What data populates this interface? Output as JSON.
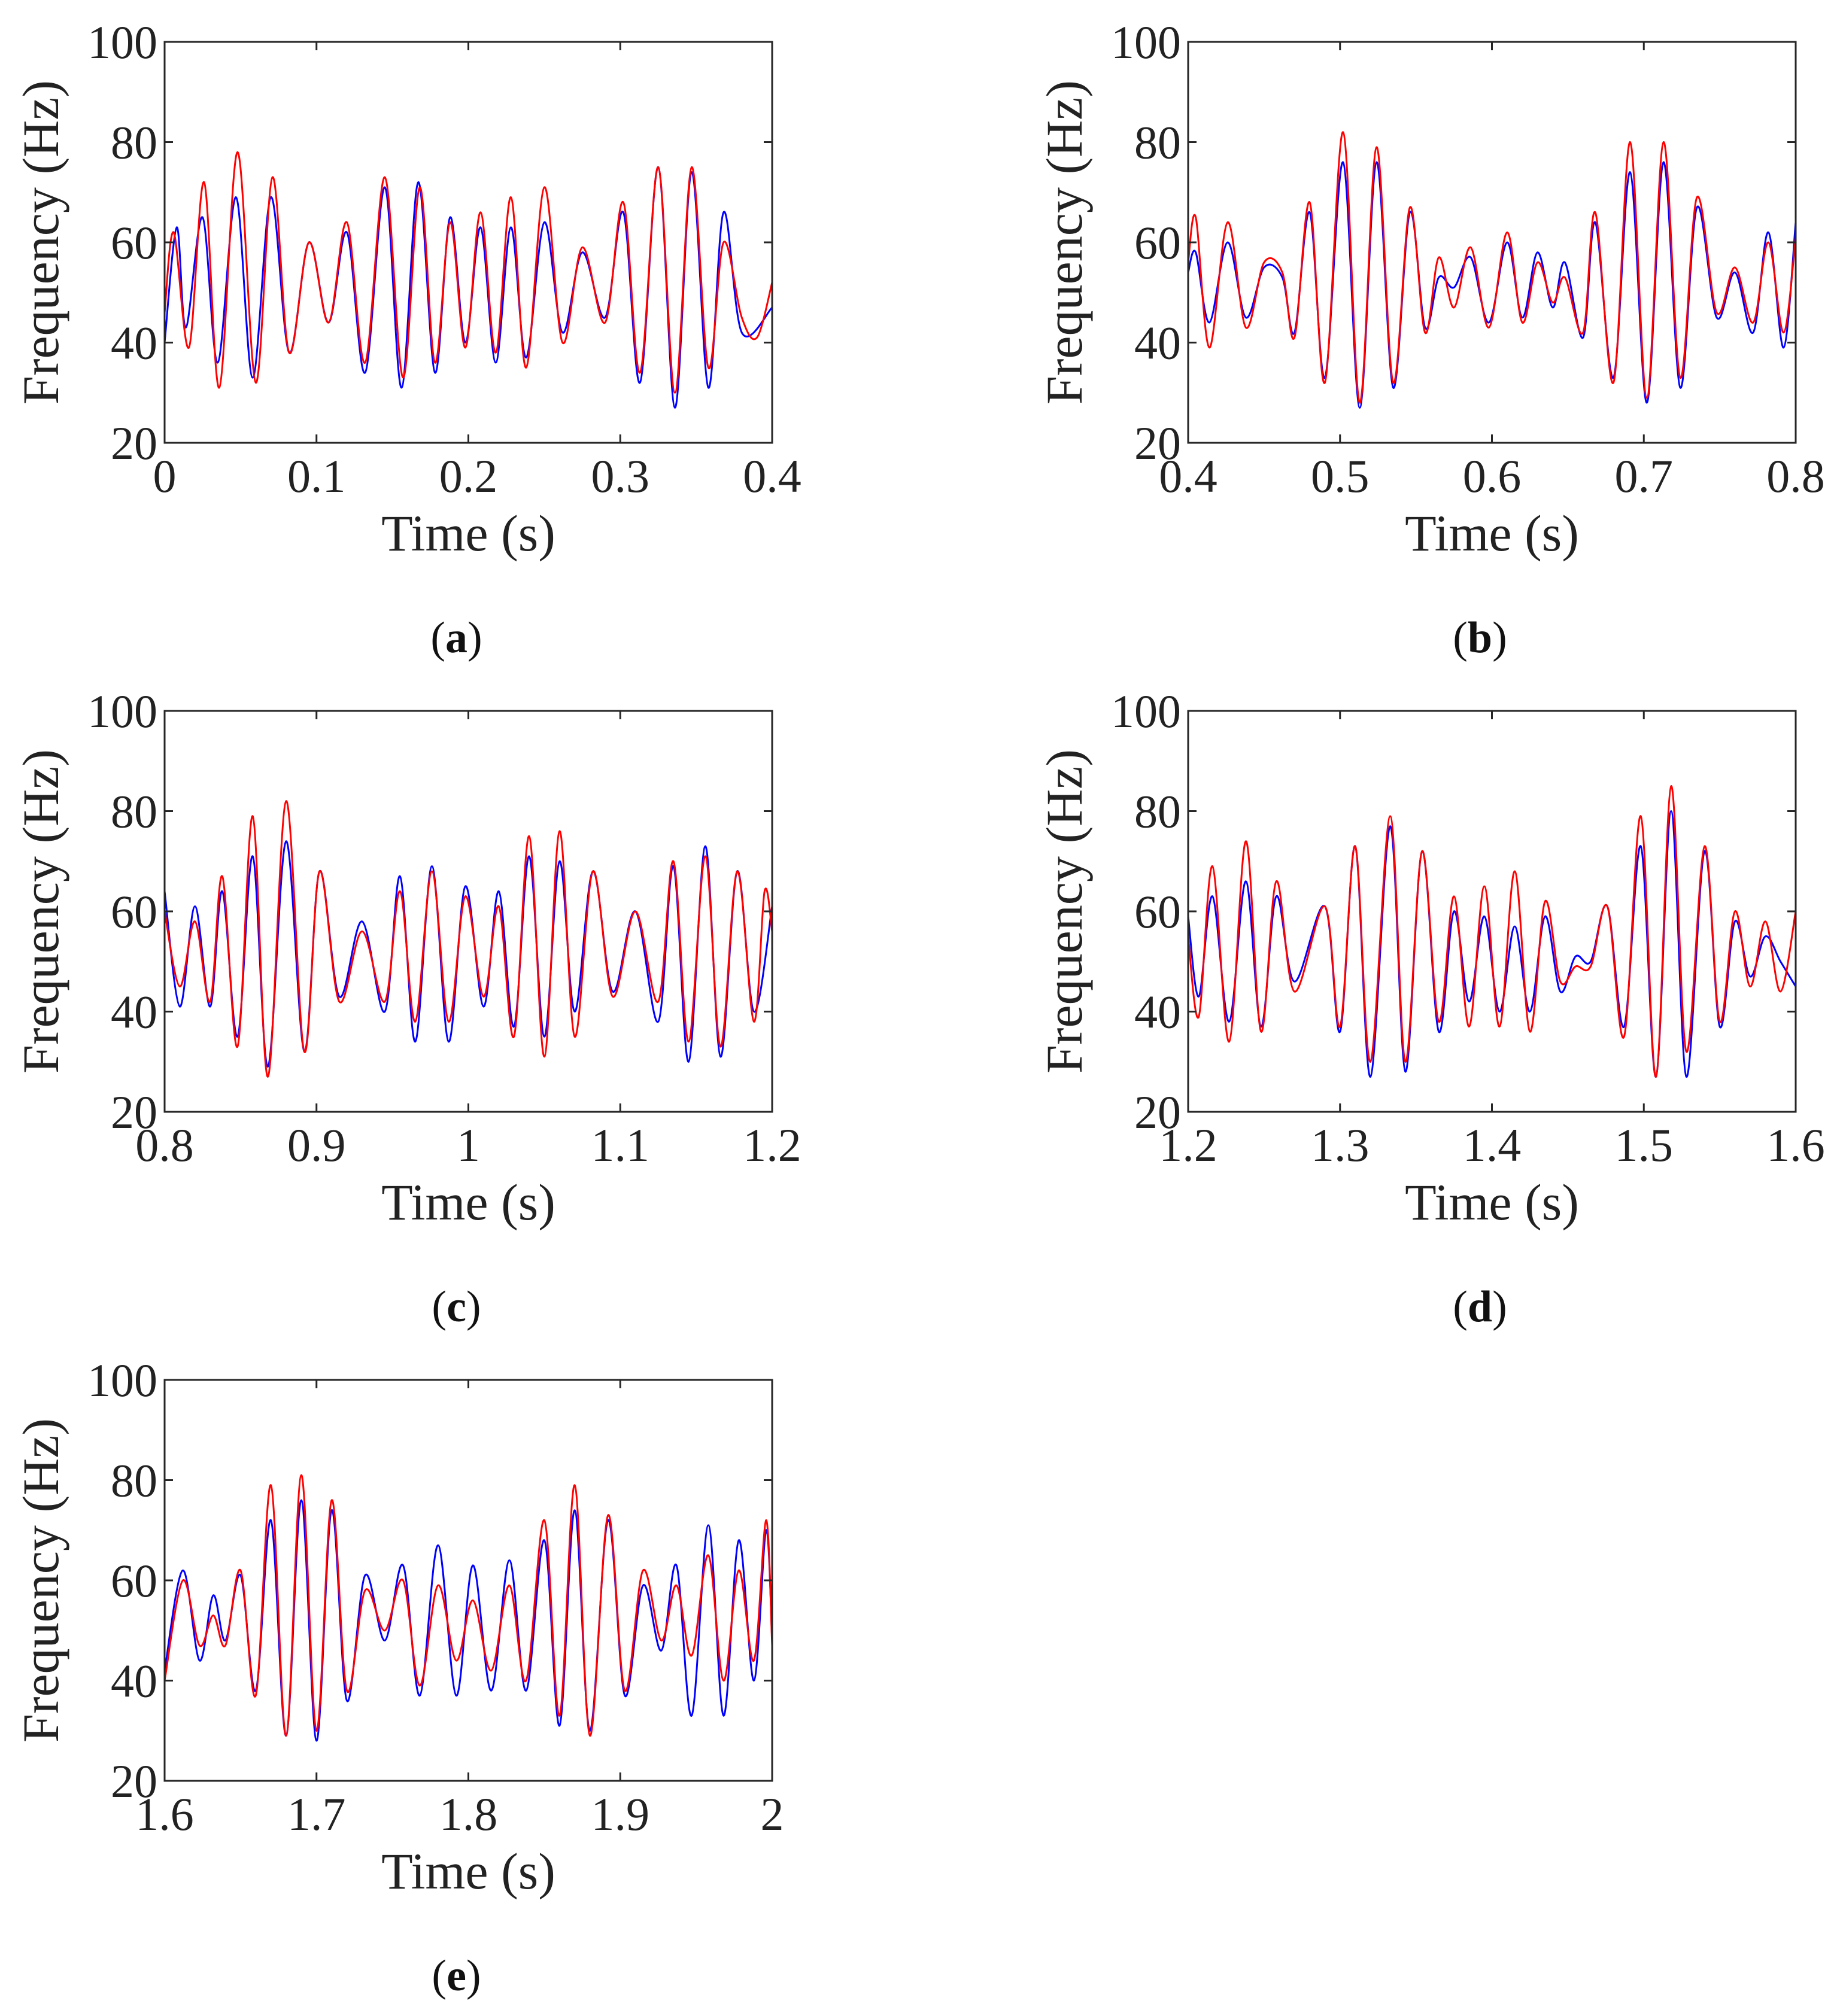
{
  "chart_data": [
    {
      "panel": "(a)",
      "caption_letter": "a",
      "type": "line",
      "xlabel": "Time (s)",
      "ylabel": "Frequency (Hz)",
      "xlim": [
        0,
        0.4
      ],
      "ylim": [
        20,
        100
      ],
      "xticks": [
        "0",
        "0.1",
        "0.2",
        "0.3",
        "0.4"
      ],
      "xtick_values": [
        0,
        0.1,
        0.2,
        0.3,
        0.4
      ],
      "yticks": [
        "20",
        "40",
        "60",
        "80",
        "100"
      ],
      "ytick_values": [
        20,
        40,
        60,
        80,
        100
      ],
      "series": [
        {
          "name": "blue",
          "color": "#0000ff",
          "x": [
            0,
            0.008,
            0.014,
            0.025,
            0.035,
            0.047,
            0.058,
            0.07,
            0.082,
            0.095,
            0.108,
            0.12,
            0.132,
            0.145,
            0.156,
            0.167,
            0.178,
            0.188,
            0.198,
            0.208,
            0.218,
            0.228,
            0.238,
            0.25,
            0.262,
            0.275,
            0.29,
            0.302,
            0.313,
            0.325,
            0.336,
            0.347,
            0.358,
            0.368,
            0.38,
            0.4
          ],
          "y": [
            40,
            63,
            43,
            65,
            36,
            69,
            33,
            69,
            38,
            60,
            44,
            62,
            34,
            71,
            31,
            72,
            34,
            65,
            40,
            63,
            36,
            63,
            37,
            64,
            42,
            58,
            45,
            66,
            32,
            75,
            27,
            74,
            31,
            66,
            42,
            47
          ]
        },
        {
          "name": "red",
          "color": "#ff0000",
          "x": [
            0,
            0.006,
            0.016,
            0.026,
            0.036,
            0.048,
            0.06,
            0.071,
            0.082,
            0.095,
            0.108,
            0.12,
            0.132,
            0.145,
            0.157,
            0.168,
            0.178,
            0.188,
            0.198,
            0.208,
            0.218,
            0.228,
            0.238,
            0.25,
            0.262,
            0.275,
            0.29,
            0.302,
            0.313,
            0.325,
            0.336,
            0.347,
            0.358,
            0.368,
            0.38,
            0.39,
            0.4
          ],
          "y": [
            46,
            62,
            39,
            72,
            31,
            78,
            32,
            73,
            38,
            60,
            44,
            64,
            36,
            73,
            33,
            71,
            36,
            64,
            39,
            66,
            38,
            69,
            35,
            71,
            40,
            59,
            44,
            68,
            34,
            75,
            30,
            75,
            35,
            60,
            45,
            41,
            52
          ]
        }
      ]
    },
    {
      "panel": "(b)",
      "caption_letter": "b",
      "type": "line",
      "xlabel": "Time (s)",
      "ylabel": "Frequency (Hz)",
      "xlim": [
        0.4,
        0.8
      ],
      "ylim": [
        20,
        100
      ],
      "xticks": [
        "0.4",
        "0.5",
        "0.6",
        "0.7",
        "0.8"
      ],
      "xtick_values": [
        0.4,
        0.5,
        0.6,
        0.7,
        0.8
      ],
      "yticks": [
        "20",
        "40",
        "60",
        "80",
        "100"
      ],
      "ytick_values": [
        20,
        40,
        60,
        80,
        100
      ],
      "series": [
        {
          "name": "blue",
          "color": "#0000ff",
          "x": [
            0.4,
            0.405,
            0.414,
            0.426,
            0.438,
            0.45,
            0.462,
            0.47,
            0.48,
            0.49,
            0.502,
            0.513,
            0.524,
            0.535,
            0.546,
            0.556,
            0.565,
            0.575,
            0.586,
            0.598,
            0.61,
            0.62,
            0.63,
            0.64,
            0.648,
            0.66,
            0.668,
            0.68,
            0.691,
            0.702,
            0.713,
            0.724,
            0.735,
            0.748,
            0.76,
            0.772,
            0.782,
            0.792,
            0.8
          ],
          "y": [
            54,
            58,
            44,
            60,
            45,
            55,
            53,
            42,
            66,
            33,
            76,
            27,
            76,
            31,
            66,
            43,
            53,
            51,
            57,
            44,
            60,
            45,
            58,
            47,
            56,
            41,
            64,
            33,
            74,
            28,
            76,
            31,
            67,
            45,
            54,
            42,
            62,
            39,
            64
          ]
        },
        {
          "name": "red",
          "color": "#ff0000",
          "x": [
            0.4,
            0.405,
            0.414,
            0.426,
            0.438,
            0.45,
            0.462,
            0.47,
            0.48,
            0.49,
            0.502,
            0.513,
            0.524,
            0.535,
            0.546,
            0.556,
            0.565,
            0.575,
            0.586,
            0.598,
            0.61,
            0.62,
            0.63,
            0.64,
            0.648,
            0.66,
            0.668,
            0.68,
            0.691,
            0.702,
            0.713,
            0.724,
            0.735,
            0.748,
            0.76,
            0.772,
            0.782,
            0.792,
            0.8
          ],
          "y": [
            56,
            65,
            39,
            64,
            43,
            56,
            54,
            41,
            68,
            32,
            82,
            28,
            79,
            32,
            67,
            42,
            57,
            47,
            59,
            43,
            62,
            44,
            56,
            48,
            53,
            42,
            66,
            32,
            80,
            29,
            80,
            33,
            69,
            46,
            55,
            44,
            60,
            42,
            61
          ]
        }
      ]
    },
    {
      "panel": "(c)",
      "caption_letter": "c",
      "type": "line",
      "xlabel": "Time (s)",
      "ylabel": "Frequency (Hz)",
      "xlim": [
        0.8,
        1.2
      ],
      "ylim": [
        20,
        100
      ],
      "xticks": [
        "0.8",
        "0.9",
        "1",
        "1.1",
        "1.2"
      ],
      "xtick_values": [
        0.8,
        0.9,
        1,
        1.1,
        1.2
      ],
      "yticks": [
        "20",
        "40",
        "60",
        "80",
        "100"
      ],
      "ytick_values": [
        20,
        40,
        60,
        80,
        100
      ],
      "series": [
        {
          "name": "blue",
          "color": "#0000ff",
          "x": [
            0.8,
            0.81,
            0.82,
            0.83,
            0.838,
            0.848,
            0.858,
            0.868,
            0.88,
            0.892,
            0.902,
            0.915,
            0.93,
            0.945,
            0.955,
            0.965,
            0.976,
            0.987,
            0.998,
            1.01,
            1.02,
            1.03,
            1.04,
            1.05,
            1.06,
            1.07,
            1.082,
            1.095,
            1.11,
            1.125,
            1.135,
            1.145,
            1.156,
            1.166,
            1.177,
            1.188,
            1.2
          ],
          "y": [
            64,
            41,
            61,
            41,
            64,
            35,
            71,
            29,
            74,
            32,
            68,
            43,
            58,
            40,
            67,
            34,
            69,
            34,
            65,
            41,
            64,
            37,
            71,
            35,
            70,
            40,
            68,
            44,
            60,
            38,
            69,
            30,
            73,
            31,
            68,
            40,
            61
          ]
        },
        {
          "name": "red",
          "color": "#ff0000",
          "x": [
            0.8,
            0.81,
            0.82,
            0.83,
            0.838,
            0.848,
            0.858,
            0.868,
            0.88,
            0.892,
            0.902,
            0.915,
            0.93,
            0.945,
            0.955,
            0.965,
            0.976,
            0.987,
            0.998,
            1.01,
            1.02,
            1.03,
            1.04,
            1.05,
            1.06,
            1.07,
            1.082,
            1.095,
            1.11,
            1.125,
            1.135,
            1.145,
            1.156,
            1.166,
            1.177,
            1.188,
            1.195,
            1.2
          ],
          "y": [
            60,
            45,
            58,
            42,
            67,
            33,
            79,
            27,
            82,
            32,
            68,
            42,
            56,
            42,
            64,
            38,
            68,
            38,
            63,
            43,
            61,
            35,
            75,
            31,
            76,
            35,
            68,
            43,
            60,
            42,
            70,
            34,
            71,
            33,
            68,
            38,
            64,
            56
          ]
        }
      ]
    },
    {
      "panel": "(d)",
      "caption_letter": "d",
      "type": "line",
      "xlabel": "Time (s)",
      "ylabel": "Frequency (Hz)",
      "xlim": [
        1.2,
        1.6
      ],
      "ylim": [
        20,
        100
      ],
      "xticks": [
        "1.2",
        "1.3",
        "1.4",
        "1.5",
        "1.6"
      ],
      "xtick_values": [
        1.2,
        1.3,
        1.4,
        1.5,
        1.6
      ],
      "yticks": [
        "20",
        "40",
        "60",
        "80",
        "100"
      ],
      "ytick_values": [
        20,
        40,
        60,
        80,
        100
      ],
      "series": [
        {
          "name": "blue",
          "color": "#0000ff",
          "x": [
            1.2,
            1.207,
            1.216,
            1.227,
            1.238,
            1.248,
            1.258,
            1.27,
            1.29,
            1.3,
            1.31,
            1.32,
            1.333,
            1.343,
            1.354,
            1.365,
            1.375,
            1.385,
            1.395,
            1.405,
            1.415,
            1.425,
            1.435,
            1.445,
            1.455,
            1.465,
            1.476,
            1.487,
            1.498,
            1.508,
            1.518,
            1.528,
            1.54,
            1.55,
            1.56,
            1.57,
            1.58,
            1.59,
            1.6
          ],
          "y": [
            59,
            43,
            63,
            38,
            66,
            37,
            63,
            46,
            61,
            36,
            73,
            27,
            77,
            28,
            72,
            36,
            60,
            42,
            59,
            40,
            57,
            40,
            59,
            44,
            51,
            50,
            61,
            37,
            73,
            27,
            80,
            27,
            72,
            37,
            58,
            47,
            55,
            50,
            45
          ]
        },
        {
          "name": "red",
          "color": "#ff0000",
          "x": [
            1.2,
            1.207,
            1.216,
            1.227,
            1.238,
            1.248,
            1.258,
            1.27,
            1.29,
            1.3,
            1.31,
            1.32,
            1.333,
            1.343,
            1.354,
            1.365,
            1.375,
            1.385,
            1.395,
            1.405,
            1.415,
            1.425,
            1.435,
            1.445,
            1.455,
            1.465,
            1.476,
            1.487,
            1.498,
            1.508,
            1.518,
            1.528,
            1.54,
            1.55,
            1.56,
            1.57,
            1.58,
            1.59,
            1.6
          ],
          "y": [
            55,
            39,
            69,
            34,
            74,
            36,
            66,
            44,
            61,
            37,
            73,
            30,
            79,
            30,
            72,
            38,
            63,
            37,
            65,
            37,
            68,
            36,
            62,
            46,
            49,
            49,
            61,
            35,
            79,
            27,
            85,
            32,
            73,
            38,
            60,
            45,
            58,
            44,
            60
          ]
        }
      ]
    },
    {
      "panel": "(e)",
      "caption_letter": "e",
      "type": "line",
      "xlabel": "Time (s)",
      "ylabel": "Frequency (Hz)",
      "xlim": [
        1.6,
        2.0
      ],
      "ylim": [
        20,
        100
      ],
      "xticks": [
        "1.6",
        "1.7",
        "1.8",
        "1.9",
        "2"
      ],
      "xtick_values": [
        1.6,
        1.7,
        1.8,
        1.9,
        2.0
      ],
      "yticks": [
        "20",
        "40",
        "60",
        "80",
        "100"
      ],
      "ytick_values": [
        20,
        40,
        60,
        80,
        100
      ],
      "series": [
        {
          "name": "blue",
          "color": "#0000ff",
          "x": [
            1.6,
            1.612,
            1.623,
            1.632,
            1.64,
            1.65,
            1.66,
            1.67,
            1.68,
            1.69,
            1.7,
            1.71,
            1.72,
            1.732,
            1.745,
            1.757,
            1.768,
            1.78,
            1.792,
            1.803,
            1.815,
            1.827,
            1.838,
            1.85,
            1.86,
            1.87,
            1.88,
            1.892,
            1.903,
            1.915,
            1.927,
            1.937,
            1.947,
            1.958,
            1.968,
            1.978,
            1.988,
            1.996,
            2.0
          ],
          "y": [
            42,
            62,
            44,
            57,
            48,
            61,
            38,
            72,
            29,
            76,
            28,
            74,
            36,
            61,
            48,
            63,
            37,
            67,
            37,
            63,
            38,
            64,
            38,
            68,
            31,
            74,
            30,
            72,
            37,
            59,
            46,
            63,
            33,
            71,
            33,
            68,
            40,
            70,
            48
          ]
        },
        {
          "name": "red",
          "color": "#ff0000",
          "x": [
            1.6,
            1.612,
            1.623,
            1.632,
            1.64,
            1.65,
            1.66,
            1.67,
            1.68,
            1.69,
            1.7,
            1.71,
            1.72,
            1.732,
            1.745,
            1.757,
            1.768,
            1.78,
            1.792,
            1.803,
            1.815,
            1.827,
            1.838,
            1.85,
            1.86,
            1.87,
            1.88,
            1.892,
            1.903,
            1.915,
            1.927,
            1.937,
            1.947,
            1.958,
            1.968,
            1.978,
            1.988,
            1.996,
            2.0
          ],
          "y": [
            40,
            60,
            47,
            53,
            47,
            62,
            37,
            79,
            29,
            81,
            30,
            76,
            38,
            58,
            50,
            60,
            39,
            59,
            44,
            56,
            42,
            59,
            40,
            72,
            33,
            79,
            29,
            73,
            38,
            62,
            48,
            59,
            45,
            65,
            40,
            62,
            44,
            72,
            47
          ]
        }
      ]
    }
  ]
}
